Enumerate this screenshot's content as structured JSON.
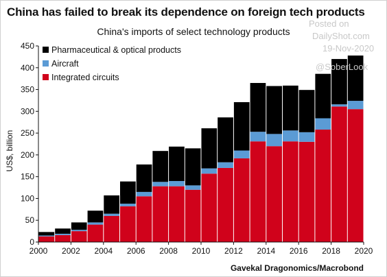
{
  "title": "China has failed to break its dependence on foreign tech products",
  "source": "Gavekal Dragonomics/Macrobond",
  "watermark": {
    "posted": "Posted on",
    "site": "DailyShot.com",
    "date": "19-Nov-2020",
    "handle": "@SoberLook"
  },
  "chart_data": {
    "type": "bar",
    "stacked": true,
    "title": "China's imports of select technology products",
    "ylabel": "US$, billion",
    "xlabel": "",
    "ylim": [
      0,
      450
    ],
    "yticks": [
      0,
      50,
      100,
      150,
      200,
      250,
      300,
      350,
      400,
      450
    ],
    "xticks": [
      "2000",
      "2002",
      "2004",
      "2006",
      "2008",
      "2010",
      "2012",
      "2014",
      "2016",
      "2018",
      "2020"
    ],
    "grid": false,
    "legend_position": "top-left",
    "categories": [
      "2000",
      "2001",
      "2002",
      "2003",
      "2004",
      "2005",
      "2006",
      "2007",
      "2008",
      "2009",
      "2010",
      "2011",
      "2012",
      "2013",
      "2014",
      "2015",
      "2016",
      "2017",
      "2018",
      "2019"
    ],
    "series": [
      {
        "name": "Integrated circuits",
        "color": "#d0021b",
        "values": [
          13,
          16,
          25,
          40,
          60,
          82,
          105,
          128,
          128,
          120,
          157,
          170,
          192,
          231,
          220,
          231,
          230,
          258,
          311,
          305
        ]
      },
      {
        "name": "Aircraft",
        "color": "#5b9bd5",
        "values": [
          2,
          3,
          3,
          5,
          5,
          6,
          10,
          10,
          12,
          10,
          12,
          13,
          18,
          22,
          28,
          25,
          22,
          26,
          5,
          19
        ]
      },
      {
        "name": "Pharmaceutical & optical products",
        "color": "#000000",
        "values": [
          8,
          12,
          17,
          27,
          42,
          51,
          63,
          71,
          79,
          85,
          92,
          103,
          111,
          112,
          110,
          103,
          97,
          102,
          104,
          104
        ]
      }
    ]
  }
}
